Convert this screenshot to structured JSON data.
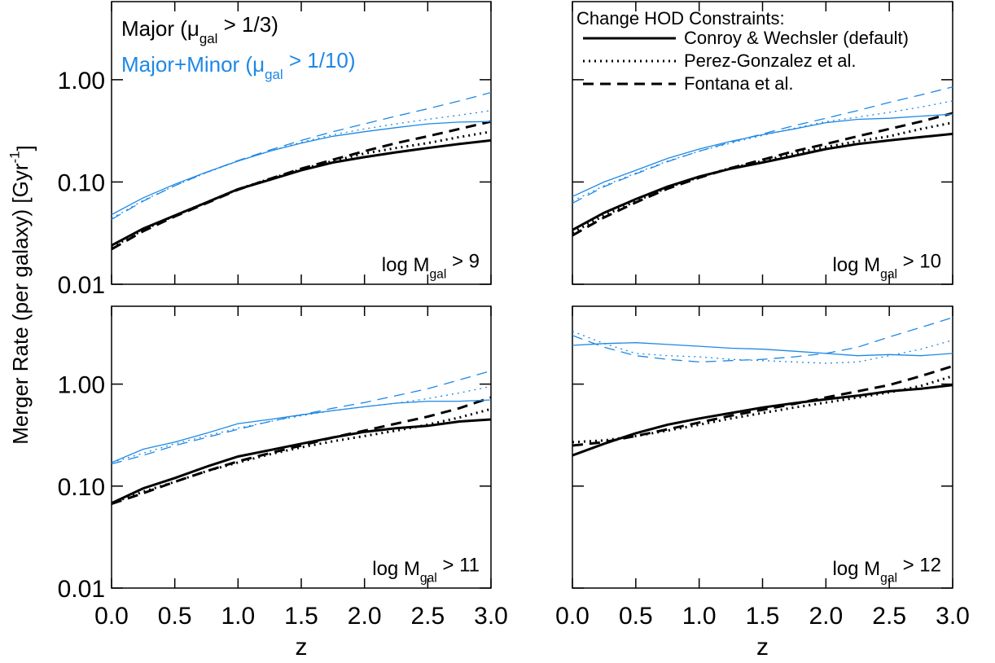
{
  "ylabel": [
    {
      "text": "Merger Rate (per galaxy)  [Gyr"
    },
    {
      "text": "-1",
      "sup": true
    },
    {
      "text": "]"
    }
  ],
  "chart_data": [
    {
      "type": "line",
      "label": [
        {
          "text": "log M"
        },
        {
          "text": "gal",
          "sub": true
        },
        {
          "text": " > 9"
        }
      ],
      "x": [
        0,
        0.25,
        0.5,
        0.75,
        1,
        1.25,
        1.5,
        1.75,
        2,
        2.25,
        2.5,
        2.75,
        3
      ],
      "xlim": [
        0,
        3
      ],
      "xticks": [
        {
          "value": 0,
          "label": "0.0"
        },
        0.5,
        {
          "value": 1,
          "label": "1.0"
        },
        1.5,
        {
          "value": 2,
          "label": "2.0"
        },
        2.5,
        {
          "value": 3,
          "label": "3.0"
        }
      ],
      "xtick_labels_shown": false,
      "ylim": [
        0.01,
        5.8
      ],
      "log_y": true,
      "yticks": [
        {
          "value": 0.01,
          "label": "0.01"
        },
        {
          "value": 0.1,
          "label": "0.10"
        },
        {
          "value": 1,
          "label": "1.00"
        }
      ],
      "ytick_labels_shown": true,
      "series": [
        {
          "color": "#000000",
          "dash": "solid",
          "width": 3,
          "values": [
            0.024,
            0.035,
            0.047,
            0.063,
            0.085,
            0.105,
            0.13,
            0.155,
            0.175,
            0.195,
            0.215,
            0.235,
            0.255
          ]
        },
        {
          "color": "#000000",
          "dash": "dotted",
          "width": 3,
          "values": [
            0.023,
            0.034,
            0.047,
            0.063,
            0.085,
            0.107,
            0.133,
            0.16,
            0.19,
            0.215,
            0.24,
            0.275,
            0.31
          ]
        },
        {
          "color": "#000000",
          "dash": "dashed",
          "width": 3,
          "values": [
            0.022,
            0.033,
            0.046,
            0.062,
            0.084,
            0.107,
            0.135,
            0.165,
            0.2,
            0.24,
            0.28,
            0.33,
            0.39
          ]
        },
        {
          "color": "#1e88e5",
          "dash": "solid",
          "width": 1.3,
          "values": [
            0.048,
            0.07,
            0.095,
            0.125,
            0.16,
            0.2,
            0.24,
            0.28,
            0.31,
            0.34,
            0.37,
            0.385,
            0.39
          ]
        },
        {
          "color": "#1e88e5",
          "dash": "dotted",
          "width": 1.3,
          "values": [
            0.044,
            0.066,
            0.092,
            0.123,
            0.16,
            0.2,
            0.245,
            0.29,
            0.33,
            0.37,
            0.41,
            0.45,
            0.5
          ]
        },
        {
          "color": "#1e88e5",
          "dash": "dashed",
          "width": 1.3,
          "values": [
            0.043,
            0.065,
            0.092,
            0.124,
            0.162,
            0.205,
            0.255,
            0.31,
            0.37,
            0.44,
            0.52,
            0.62,
            0.75
          ]
        }
      ],
      "color_legend": [
        {
          "label": [
            {
              "text": "Major (μ"
            },
            {
              "text": "gal",
              "sub": true
            },
            {
              "text": " > 1/3)"
            }
          ],
          "color": "#000000"
        },
        {
          "label": [
            {
              "text": "Major+Minor (μ"
            },
            {
              "text": "gal",
              "sub": true
            },
            {
              "text": " > 1/10)"
            }
          ],
          "color": "#1e88e5"
        }
      ]
    },
    {
      "type": "line",
      "label": [
        {
          "text": "log M"
        },
        {
          "text": "gal",
          "sub": true
        },
        {
          "text": " > 10"
        }
      ],
      "x": [
        0,
        0.25,
        0.5,
        0.75,
        1,
        1.25,
        1.5,
        1.75,
        2,
        2.25,
        2.5,
        2.75,
        3
      ],
      "xlim": [
        0,
        3
      ],
      "xticks": [
        {
          "value": 0,
          "label": "0.0"
        },
        0.5,
        {
          "value": 1,
          "label": "1.0"
        },
        1.5,
        {
          "value": 2,
          "label": "2.0"
        },
        2.5,
        {
          "value": 3,
          "label": "3.0"
        }
      ],
      "xtick_labels_shown": false,
      "ylim": [
        0.01,
        5.8
      ],
      "log_y": true,
      "yticks": [
        {
          "value": 0.01,
          "label": "0.01"
        },
        {
          "value": 0.1,
          "label": "0.10"
        },
        {
          "value": 1,
          "label": "1.00"
        }
      ],
      "ytick_labels_shown": false,
      "series": [
        {
          "color": "#000000",
          "dash": "solid",
          "width": 3,
          "values": [
            0.034,
            0.05,
            0.068,
            0.09,
            0.113,
            0.135,
            0.155,
            0.18,
            0.21,
            0.235,
            0.255,
            0.275,
            0.295
          ]
        },
        {
          "color": "#000000",
          "dash": "dotted",
          "width": 3,
          "values": [
            0.032,
            0.047,
            0.065,
            0.088,
            0.112,
            0.137,
            0.16,
            0.19,
            0.22,
            0.25,
            0.28,
            0.33,
            0.38
          ]
        },
        {
          "color": "#000000",
          "dash": "dashed",
          "width": 3,
          "values": [
            0.03,
            0.045,
            0.063,
            0.086,
            0.11,
            0.137,
            0.165,
            0.2,
            0.235,
            0.28,
            0.33,
            0.39,
            0.47
          ]
        },
        {
          "color": "#1e88e5",
          "dash": "solid",
          "width": 1.3,
          "values": [
            0.072,
            0.1,
            0.13,
            0.17,
            0.21,
            0.25,
            0.29,
            0.33,
            0.38,
            0.41,
            0.42,
            0.44,
            0.46
          ]
        },
        {
          "color": "#1e88e5",
          "dash": "dotted",
          "width": 1.3,
          "values": [
            0.065,
            0.092,
            0.122,
            0.16,
            0.2,
            0.24,
            0.285,
            0.335,
            0.39,
            0.43,
            0.48,
            0.54,
            0.62
          ]
        },
        {
          "color": "#1e88e5",
          "dash": "dashed",
          "width": 1.3,
          "values": [
            0.062,
            0.09,
            0.12,
            0.158,
            0.2,
            0.245,
            0.295,
            0.355,
            0.42,
            0.5,
            0.6,
            0.71,
            0.85
          ]
        }
      ],
      "style_legend": {
        "title": "Change HOD Constraints:",
        "entries": [
          {
            "label": "Conroy & Wechsler (default)",
            "dash": "solid"
          },
          {
            "label": "Perez-Gonzalez et al.",
            "dash": "dotted"
          },
          {
            "label": "Fontana et al.",
            "dash": "dashed"
          }
        ]
      }
    },
    {
      "type": "line",
      "label": [
        {
          "text": "log M"
        },
        {
          "text": "gal",
          "sub": true
        },
        {
          "text": " > 11"
        }
      ],
      "xlabel": "z",
      "x": [
        0,
        0.25,
        0.5,
        0.75,
        1,
        1.25,
        1.5,
        1.75,
        2,
        2.25,
        2.5,
        2.75,
        3
      ],
      "xlim": [
        0,
        3
      ],
      "xticks": [
        {
          "value": 0,
          "label": "0.0"
        },
        0.5,
        {
          "value": 1,
          "label": "1.0"
        },
        1.5,
        {
          "value": 2,
          "label": "2.0"
        },
        2.5,
        {
          "value": 3,
          "label": "3.0"
        }
      ],
      "xtick_labels_shown": true,
      "ylim": [
        0.01,
        5.8
      ],
      "log_y": true,
      "yticks": [
        {
          "value": 0.01,
          "label": "0.01"
        },
        {
          "value": 0.1,
          "label": "0.10"
        },
        {
          "value": 1,
          "label": "1.00"
        }
      ],
      "ytick_labels_shown": true,
      "series": [
        {
          "color": "#000000",
          "dash": "solid",
          "width": 3,
          "values": [
            0.068,
            0.095,
            0.12,
            0.155,
            0.195,
            0.225,
            0.26,
            0.3,
            0.34,
            0.37,
            0.39,
            0.43,
            0.45
          ]
        },
        {
          "color": "#000000",
          "dash": "dotted",
          "width": 3,
          "values": [
            0.068,
            0.088,
            0.11,
            0.14,
            0.17,
            0.205,
            0.24,
            0.275,
            0.31,
            0.35,
            0.4,
            0.47,
            0.57
          ]
        },
        {
          "color": "#000000",
          "dash": "dashed",
          "width": 3,
          "values": [
            0.067,
            0.085,
            0.11,
            0.14,
            0.175,
            0.21,
            0.25,
            0.3,
            0.35,
            0.41,
            0.48,
            0.58,
            0.74
          ]
        },
        {
          "color": "#1e88e5",
          "dash": "solid",
          "width": 1.3,
          "values": [
            0.17,
            0.23,
            0.27,
            0.33,
            0.41,
            0.45,
            0.5,
            0.55,
            0.6,
            0.65,
            0.68,
            0.68,
            0.7
          ]
        },
        {
          "color": "#1e88e5",
          "dash": "dotted",
          "width": 1.3,
          "values": [
            0.17,
            0.21,
            0.26,
            0.31,
            0.37,
            0.43,
            0.49,
            0.55,
            0.6,
            0.65,
            0.72,
            0.82,
            0.95
          ]
        },
        {
          "color": "#1e88e5",
          "dash": "dashed",
          "width": 1.3,
          "values": [
            0.165,
            0.2,
            0.25,
            0.3,
            0.36,
            0.43,
            0.5,
            0.58,
            0.66,
            0.77,
            0.9,
            1.1,
            1.35
          ]
        }
      ]
    },
    {
      "type": "line",
      "label": [
        {
          "text": "log M"
        },
        {
          "text": "gal",
          "sub": true
        },
        {
          "text": " > 12"
        }
      ],
      "xlabel": "z",
      "x": [
        0,
        0.25,
        0.5,
        0.75,
        1,
        1.25,
        1.5,
        1.75,
        2,
        2.25,
        2.5,
        2.75,
        3
      ],
      "xlim": [
        0,
        3
      ],
      "xticks": [
        {
          "value": 0,
          "label": "0.0"
        },
        0.5,
        {
          "value": 1,
          "label": "1.0"
        },
        1.5,
        {
          "value": 2,
          "label": "2.0"
        },
        2.5,
        {
          "value": 3,
          "label": "3.0"
        }
      ],
      "xtick_labels_shown": true,
      "ylim": [
        0.01,
        5.8
      ],
      "log_y": true,
      "yticks": [
        {
          "value": 0.01,
          "label": "0.01"
        },
        {
          "value": 0.1,
          "label": "0.10"
        },
        {
          "value": 1,
          "label": "1.00"
        }
      ],
      "ytick_labels_shown": false,
      "series": [
        {
          "color": "#000000",
          "dash": "solid",
          "width": 3,
          "values": [
            0.2,
            0.26,
            0.33,
            0.4,
            0.46,
            0.52,
            0.59,
            0.65,
            0.71,
            0.77,
            0.85,
            0.9,
            0.98
          ]
        },
        {
          "color": "#000000",
          "dash": "dotted",
          "width": 3,
          "values": [
            0.27,
            0.28,
            0.31,
            0.35,
            0.4,
            0.46,
            0.52,
            0.59,
            0.66,
            0.74,
            0.83,
            0.96,
            1.2
          ]
        },
        {
          "color": "#000000",
          "dash": "dashed",
          "width": 3,
          "values": [
            0.25,
            0.27,
            0.31,
            0.36,
            0.42,
            0.49,
            0.56,
            0.64,
            0.74,
            0.85,
            0.98,
            1.2,
            1.5
          ]
        },
        {
          "color": "#1e88e5",
          "dash": "solid",
          "width": 1.3,
          "values": [
            2.4,
            2.5,
            2.55,
            2.45,
            2.35,
            2.25,
            2.2,
            2.1,
            2.0,
            1.9,
            1.95,
            1.9,
            2.0
          ]
        },
        {
          "color": "#1e88e5",
          "dash": "dotted",
          "width": 1.3,
          "values": [
            3.3,
            2.5,
            2.0,
            1.9,
            1.85,
            1.75,
            1.7,
            1.65,
            1.6,
            1.65,
            1.9,
            2.2,
            2.7
          ]
        },
        {
          "color": "#1e88e5",
          "dash": "dashed",
          "width": 1.3,
          "values": [
            3.0,
            2.3,
            1.9,
            1.75,
            1.65,
            1.7,
            1.75,
            1.85,
            2.0,
            2.3,
            2.9,
            3.6,
            4.5
          ]
        }
      ]
    }
  ]
}
